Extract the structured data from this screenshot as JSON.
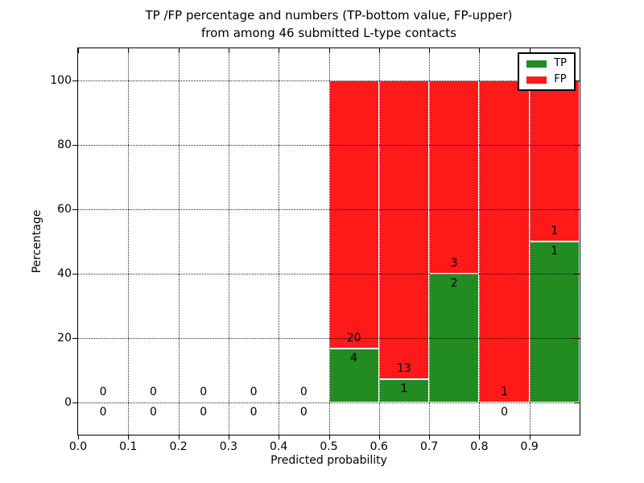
{
  "figure": {
    "title_line1": "TP /FP percentage and numbers (TP-bottom value, FP-upper)",
    "title_line2": "from among 46 submitted L-type contacts",
    "xlabel": "Predicted probability",
    "ylabel": "Percentage"
  },
  "legend": {
    "items": [
      {
        "label": "TP",
        "color": "#228b22"
      },
      {
        "label": "FP",
        "color": "#ff1a1a"
      }
    ]
  },
  "chart_data": {
    "type": "bar",
    "stacked": true,
    "title": "TP /FP percentage and numbers (TP-bottom value, FP-upper) from among 46 submitted L-type contacts",
    "xlabel": "Predicted probability",
    "ylabel": "Percentage",
    "xlim": [
      0.0,
      1.0
    ],
    "ylim": [
      -10,
      110
    ],
    "grid": "dotted",
    "legend_position": "upper right",
    "total_contacts": 46,
    "x_ticks": [
      {
        "v": 0.0,
        "label": "0.0"
      },
      {
        "v": 0.1,
        "label": "0.1"
      },
      {
        "v": 0.2,
        "label": "0.2"
      },
      {
        "v": 0.3,
        "label": "0.3"
      },
      {
        "v": 0.4,
        "label": "0.4"
      },
      {
        "v": 0.5,
        "label": "0.5"
      },
      {
        "v": 0.6,
        "label": "0.6"
      },
      {
        "v": 0.7,
        "label": "0.7"
      },
      {
        "v": 0.8,
        "label": "0.8"
      },
      {
        "v": 0.9,
        "label": "0.9"
      }
    ],
    "y_ticks": [
      {
        "v": 0,
        "label": "0"
      },
      {
        "v": 20,
        "label": "20"
      },
      {
        "v": 40,
        "label": "40"
      },
      {
        "v": 60,
        "label": "60"
      },
      {
        "v": 80,
        "label": "80"
      },
      {
        "v": 100,
        "label": "100"
      }
    ],
    "series": [
      {
        "name": "TP",
        "color": "#228b22",
        "counts": [
          0,
          0,
          0,
          0,
          0,
          4,
          1,
          2,
          0,
          1
        ]
      },
      {
        "name": "FP",
        "color": "#ff1a1a",
        "counts": [
          0,
          0,
          0,
          0,
          0,
          20,
          13,
          3,
          1,
          1
        ]
      }
    ],
    "bins": [
      {
        "x0": 0.0,
        "x1": 0.1,
        "tp": 0,
        "fp": 0,
        "tp_pct": 0,
        "fp_pct": 0
      },
      {
        "x0": 0.1,
        "x1": 0.2,
        "tp": 0,
        "fp": 0,
        "tp_pct": 0,
        "fp_pct": 0
      },
      {
        "x0": 0.2,
        "x1": 0.3,
        "tp": 0,
        "fp": 0,
        "tp_pct": 0,
        "fp_pct": 0
      },
      {
        "x0": 0.3,
        "x1": 0.4,
        "tp": 0,
        "fp": 0,
        "tp_pct": 0,
        "fp_pct": 0
      },
      {
        "x0": 0.4,
        "x1": 0.5,
        "tp": 0,
        "fp": 0,
        "tp_pct": 0,
        "fp_pct": 0
      },
      {
        "x0": 0.5,
        "x1": 0.6,
        "tp": 4,
        "fp": 20,
        "tp_pct": 16.667,
        "fp_pct": 83.333
      },
      {
        "x0": 0.6,
        "x1": 0.7,
        "tp": 1,
        "fp": 13,
        "tp_pct": 7.143,
        "fp_pct": 92.857
      },
      {
        "x0": 0.7,
        "x1": 0.8,
        "tp": 2,
        "fp": 3,
        "tp_pct": 40,
        "fp_pct": 60
      },
      {
        "x0": 0.8,
        "x1": 0.9,
        "tp": 0,
        "fp": 1,
        "tp_pct": 0,
        "fp_pct": 100
      },
      {
        "x0": 0.9,
        "x1": 1.0,
        "tp": 1,
        "fp": 1,
        "tp_pct": 50,
        "fp_pct": 50
      }
    ]
  }
}
